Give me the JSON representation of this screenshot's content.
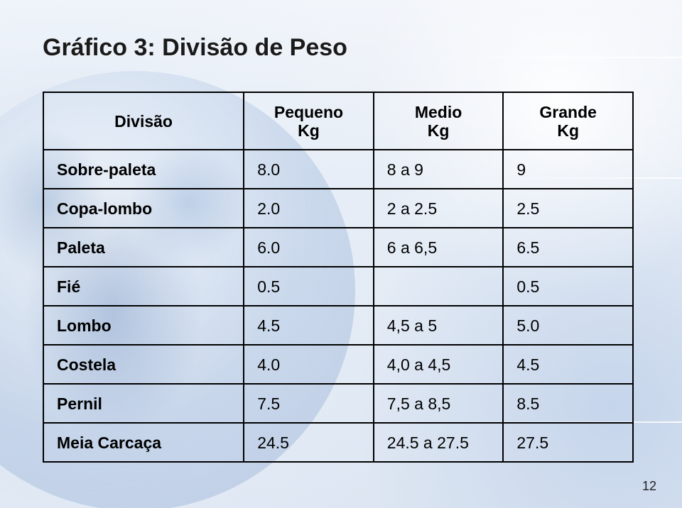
{
  "title": "Gráfico 3: Divisão de Peso",
  "page_number": "12",
  "table": {
    "type": "table",
    "border_color": "#000000",
    "font_family": "Arial",
    "header_fontsize": 23,
    "cell_fontsize": 23,
    "label_fontweight": 700,
    "value_fontweight": 400,
    "background_color": "transparent",
    "columns": [
      {
        "label": "Divisão",
        "align": "left"
      },
      {
        "label": "Pequeno\nKg",
        "align": "center"
      },
      {
        "label": "Medio\nKg",
        "align": "center"
      },
      {
        "label": "Grande\nKg",
        "align": "center"
      }
    ],
    "rows": [
      {
        "label": "Sobre-paleta",
        "pequeno": "8.0",
        "medio": "8 a 9",
        "grande": "9"
      },
      {
        "label": "Copa-lombo",
        "pequeno": "2.0",
        "medio": "2 a 2.5",
        "grande": "2.5"
      },
      {
        "label": "Paleta",
        "pequeno": "6.0",
        "medio": "6 a 6,5",
        "grande": "6.5"
      },
      {
        "label": "Fié",
        "pequeno": "0.5",
        "medio": "",
        "grande": "0.5"
      },
      {
        "label": "Lombo",
        "pequeno": "4.5",
        "medio": "4,5 a 5",
        "grande": "5.0"
      },
      {
        "label": "Costela",
        "pequeno": "4.0",
        "medio": "4,0 a 4,5",
        "grande": "4.5"
      },
      {
        "label": "Pernil",
        "pequeno": "7.5",
        "medio": "7,5 a 8,5",
        "grande": "8.5"
      },
      {
        "label": "Meia Carcaça",
        "pequeno": "24.5",
        "medio": "24.5 a 27.5",
        "grande": "27.5"
      }
    ]
  },
  "background": {
    "base_gradient": [
      "#f2f5fa",
      "#e6edf6",
      "#dde6f2"
    ],
    "globe_color": "#a0b9dc",
    "flare_color": "#ffffff"
  }
}
